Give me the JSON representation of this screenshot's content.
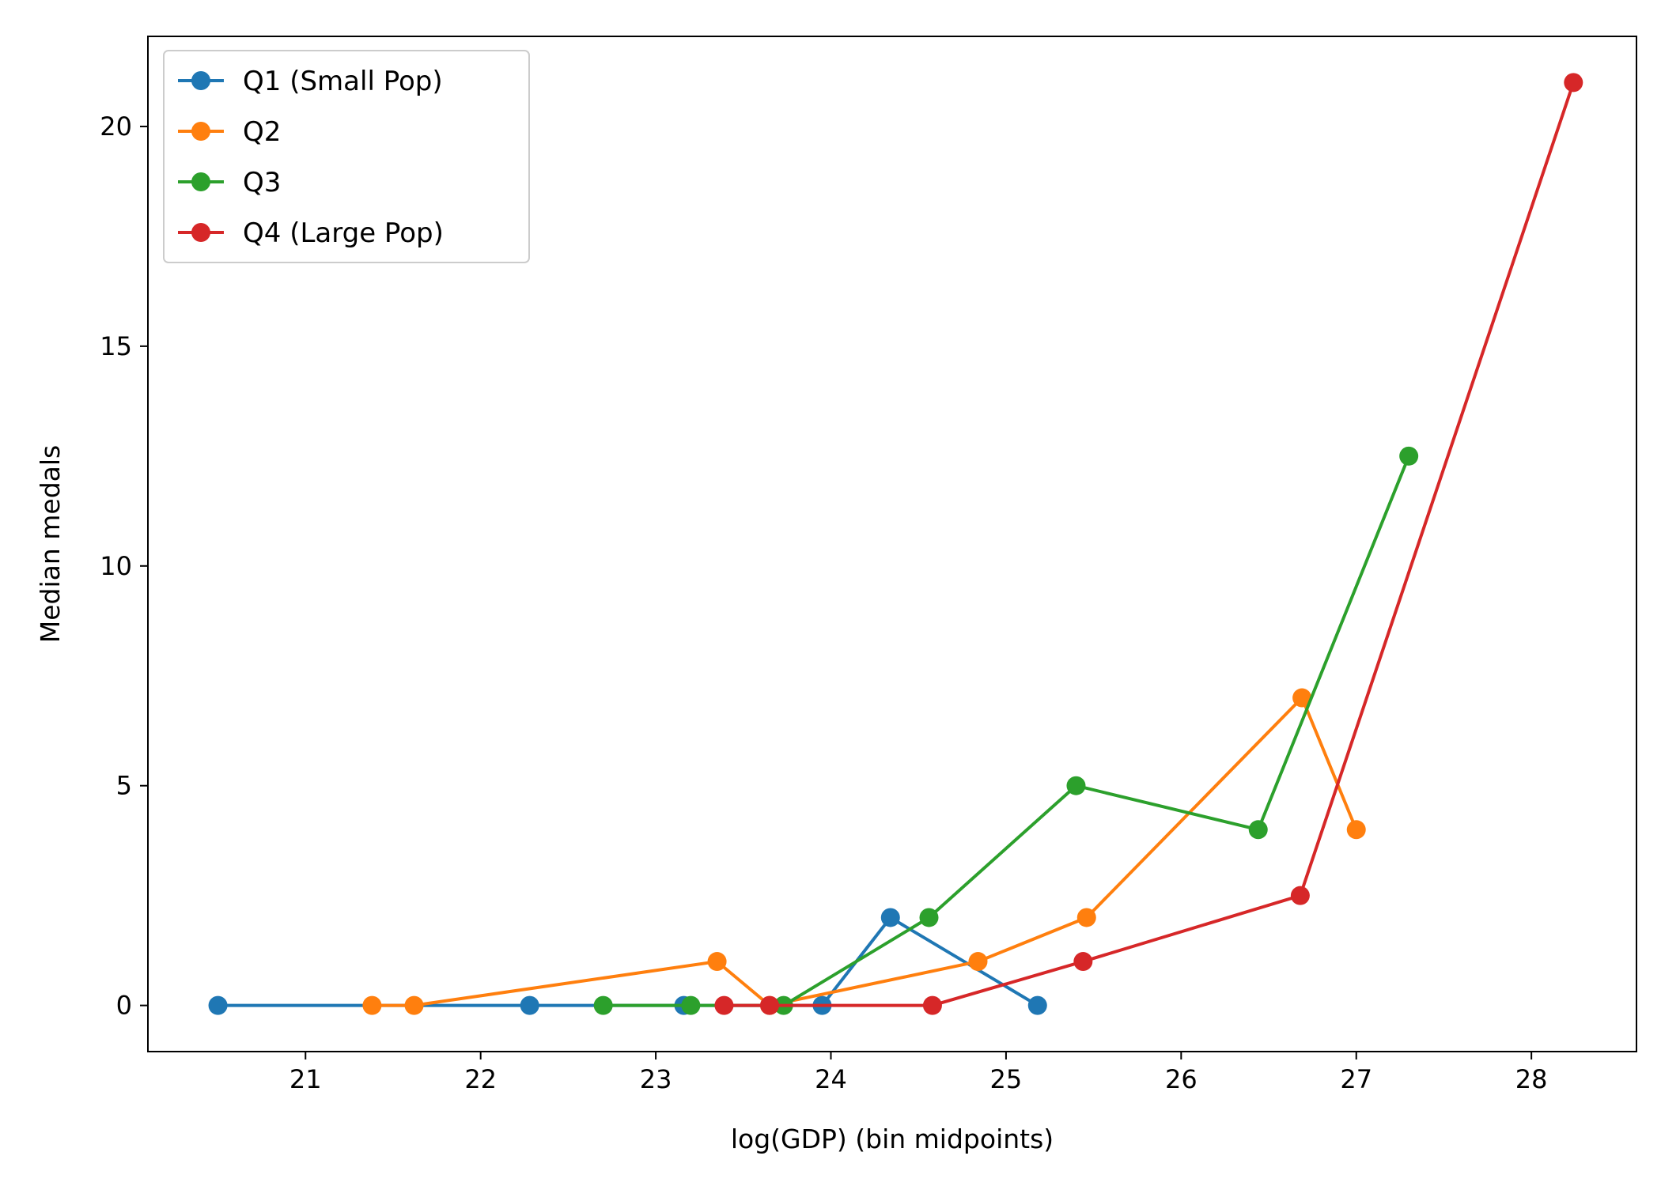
{
  "chart_data": {
    "type": "line",
    "title": "",
    "xlabel": "log(GDP) (bin midpoints)",
    "ylabel": "Median medals",
    "xlim": [
      20.1,
      28.6
    ],
    "ylim": [
      -1.05,
      22.05
    ],
    "xticks": [
      21,
      22,
      23,
      24,
      25,
      26,
      27,
      28
    ],
    "yticks": [
      0,
      5,
      10,
      15,
      20
    ],
    "grid": false,
    "legend_position": "upper-left",
    "series": [
      {
        "name": "Q1 (Small Pop)",
        "color": "#1f77b4",
        "x": [
          20.5,
          22.28,
          23.16,
          23.95,
          24.34,
          25.18
        ],
        "y": [
          0,
          0,
          0,
          0,
          2,
          0
        ]
      },
      {
        "name": "Q2",
        "color": "#ff7f0e",
        "x": [
          21.38,
          21.62,
          23.35,
          23.65,
          24.84,
          25.46,
          26.69,
          27.0
        ],
        "y": [
          0,
          0,
          1,
          0,
          1,
          2,
          7,
          4
        ]
      },
      {
        "name": "Q3",
        "color": "#2ca02c",
        "x": [
          22.7,
          23.2,
          23.73,
          24.56,
          25.4,
          26.44,
          27.3
        ],
        "y": [
          0,
          0,
          0,
          2,
          5,
          4,
          12.5
        ]
      },
      {
        "name": "Q4 (Large Pop)",
        "color": "#d62728",
        "x": [
          23.39,
          23.65,
          24.58,
          25.44,
          26.68,
          28.24
        ],
        "y": [
          0,
          0,
          0,
          1,
          2.5,
          21
        ]
      }
    ]
  }
}
